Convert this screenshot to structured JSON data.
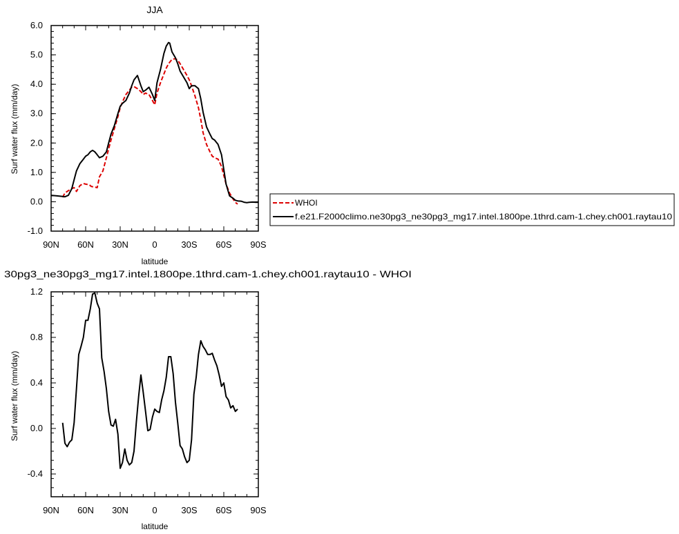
{
  "chart_data": [
    {
      "type": "line",
      "title": "JJA",
      "xlabel": "latitude",
      "ylabel": "Surf water flux (mm/day)",
      "xlim": [
        -90,
        90
      ],
      "ylim": [
        -1.0,
        6.0
      ],
      "xticks": [
        -90,
        -60,
        -30,
        0,
        30,
        60,
        90
      ],
      "xticklabels": [
        "90N",
        "60N",
        "30N",
        "0",
        "30S",
        "60S",
        "90S"
      ],
      "yticks": [
        -1.0,
        0.0,
        1.0,
        2.0,
        3.0,
        4.0,
        5.0,
        6.0
      ],
      "yticklabels": [
        "-1.0",
        "0.0",
        "1.0",
        "2.0",
        "3.0",
        "4.0",
        "5.0",
        "6.0"
      ],
      "legend": {
        "placement": "right-outside"
      },
      "series": [
        {
          "name": "WHOI",
          "color": "#dd0000",
          "dash": "dashed",
          "x": [
            -80,
            -78,
            -75,
            -72,
            -70,
            -68,
            -65,
            -62,
            -60,
            -57,
            -55,
            -52,
            -50,
            -48,
            -45,
            -42,
            -40,
            -38,
            -35,
            -32,
            -30,
            -28,
            -25,
            -22,
            -20,
            -18,
            -15,
            -12,
            -10,
            -8,
            -5,
            -2,
            0,
            2,
            5,
            8,
            10,
            12,
            15,
            18,
            20,
            22,
            25,
            28,
            30,
            32,
            35,
            38,
            40,
            42,
            45,
            48,
            50,
            52,
            55,
            58,
            60,
            62,
            65,
            68,
            70,
            72
          ],
          "y": [
            0.15,
            0.3,
            0.38,
            0.45,
            0.48,
            0.35,
            0.55,
            0.62,
            0.6,
            0.58,
            0.52,
            0.5,
            0.48,
            0.85,
            1.05,
            1.5,
            1.8,
            2.1,
            2.5,
            2.9,
            3.2,
            3.4,
            3.65,
            3.8,
            3.9,
            3.92,
            3.85,
            3.75,
            3.65,
            3.7,
            3.65,
            3.45,
            3.3,
            3.7,
            4.05,
            4.35,
            4.55,
            4.7,
            4.85,
            4.87,
            4.82,
            4.7,
            4.5,
            4.3,
            4.15,
            3.95,
            3.6,
            3.2,
            2.8,
            2.35,
            1.95,
            1.7,
            1.55,
            1.5,
            1.45,
            1.2,
            0.9,
            0.6,
            0.3,
            0.1,
            -0.02,
            -0.08
          ]
        },
        {
          "name": "f.e21.F2000climo.ne30pg3_ne30pg3_mg17.intel.1800pe.1thrd.cam-1.chey.ch001.raytau10",
          "color": "#000000",
          "dash": "solid",
          "x": [
            -90,
            -85,
            -80,
            -78,
            -75,
            -72,
            -70,
            -68,
            -65,
            -62,
            -60,
            -58,
            -56,
            -54,
            -52,
            -50,
            -48,
            -45,
            -42,
            -40,
            -38,
            -35,
            -32,
            -30,
            -28,
            -25,
            -22,
            -20,
            -18,
            -15,
            -12,
            -10,
            -8,
            -5,
            -2,
            0,
            2,
            5,
            8,
            10,
            12,
            13,
            15,
            18,
            20,
            22,
            25,
            28,
            30,
            32,
            35,
            38,
            40,
            42,
            45,
            48,
            50,
            52,
            55,
            58,
            60,
            62,
            65,
            68,
            70,
            72,
            75,
            78,
            80,
            82,
            85,
            88,
            90
          ],
          "y": [
            0.22,
            0.2,
            0.18,
            0.17,
            0.22,
            0.45,
            0.75,
            1.05,
            1.3,
            1.45,
            1.55,
            1.6,
            1.7,
            1.75,
            1.7,
            1.6,
            1.5,
            1.55,
            1.7,
            2.0,
            2.3,
            2.6,
            3.0,
            3.25,
            3.35,
            3.45,
            3.7,
            3.95,
            4.15,
            4.3,
            3.95,
            3.75,
            3.8,
            3.9,
            3.65,
            3.45,
            4.05,
            4.5,
            5.05,
            5.3,
            5.42,
            5.4,
            5.1,
            4.9,
            4.7,
            4.45,
            4.25,
            4.05,
            3.85,
            3.95,
            3.95,
            3.85,
            3.5,
            3.05,
            2.55,
            2.3,
            2.15,
            2.1,
            1.95,
            1.6,
            1.1,
            0.6,
            0.2,
            0.12,
            0.05,
            0.03,
            0.02,
            -0.02,
            -0.03,
            -0.02,
            -0.01,
            -0.02,
            -0.02
          ]
        }
      ]
    },
    {
      "type": "line",
      "title": "30pg3_ne30pg3_mg17.intel.1800pe.1thrd.cam-1.chey.ch001.raytau10 - WHOI",
      "xlabel": "latitude",
      "ylabel": "Surf water flux (mm/day)",
      "xlim": [
        -90,
        90
      ],
      "ylim": [
        -0.6,
        1.2
      ],
      "xticks": [
        -90,
        -60,
        -30,
        0,
        30,
        60,
        90
      ],
      "xticklabels": [
        "90N",
        "60N",
        "30N",
        "0",
        "30S",
        "60S",
        "90S"
      ],
      "yticks": [
        -0.4,
        0.0,
        0.4,
        0.8,
        1.2
      ],
      "yticklabels": [
        "-0.4",
        "0.0",
        "0.4",
        "0.8",
        "1.2"
      ],
      "series": [
        {
          "color": "#000000",
          "dash": "solid",
          "x": [
            -80,
            -78,
            -76,
            -74,
            -72,
            -70,
            -68,
            -66,
            -64,
            -62,
            -60,
            -58,
            -56,
            -54,
            -52,
            -50,
            -48,
            -46,
            -44,
            -42,
            -40,
            -38,
            -36,
            -34,
            -32,
            -30,
            -28,
            -26,
            -24,
            -22,
            -20,
            -18,
            -16,
            -14,
            -12,
            -10,
            -8,
            -6,
            -4,
            -2,
            0,
            2,
            4,
            6,
            8,
            10,
            12,
            14,
            16,
            18,
            20,
            22,
            24,
            26,
            28,
            30,
            32,
            34,
            36,
            38,
            40,
            42,
            44,
            46,
            48,
            50,
            52,
            54,
            56,
            58,
            60,
            62,
            64,
            66,
            68,
            70,
            72
          ],
          "y": [
            0.05,
            -0.13,
            -0.16,
            -0.12,
            -0.1,
            0.05,
            0.35,
            0.65,
            0.72,
            0.8,
            0.95,
            0.95,
            1.05,
            1.18,
            1.19,
            1.1,
            1.05,
            0.62,
            0.5,
            0.35,
            0.15,
            0.03,
            0.02,
            0.08,
            -0.05,
            -0.35,
            -0.3,
            -0.18,
            -0.28,
            -0.32,
            -0.3,
            -0.2,
            0.05,
            0.28,
            0.47,
            0.32,
            0.15,
            -0.02,
            -0.01,
            0.1,
            0.17,
            0.15,
            0.14,
            0.25,
            0.33,
            0.45,
            0.63,
            0.63,
            0.48,
            0.23,
            0.05,
            -0.15,
            -0.18,
            -0.25,
            -0.3,
            -0.28,
            -0.1,
            0.3,
            0.45,
            0.65,
            0.77,
            0.72,
            0.69,
            0.65,
            0.65,
            0.66,
            0.6,
            0.55,
            0.47,
            0.37,
            0.4,
            0.28,
            0.25,
            0.18,
            0.2,
            0.15,
            0.17
          ]
        }
      ]
    }
  ]
}
